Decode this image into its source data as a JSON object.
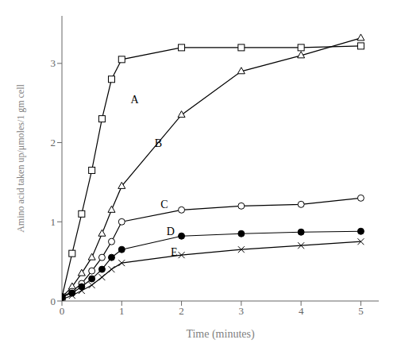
{
  "chart_data": {
    "type": "line",
    "xlabel": "Time  (minutes)",
    "ylabel": "Amino acid taken up/μmoles/1 gm cell",
    "xlim": [
      0,
      5.3
    ],
    "ylim": [
      0,
      3.6
    ],
    "xticks": [
      0,
      1,
      2,
      3,
      4,
      5
    ],
    "yticks": [
      0,
      1.0,
      2.0,
      3.0
    ],
    "grid": false,
    "series": [
      {
        "name": "A",
        "color": "#000000",
        "marker": "square",
        "x": [
          0,
          0.17,
          0.33,
          0.5,
          0.67,
          0.83,
          1.0,
          2.0,
          3.0,
          4.0,
          5.0
        ],
        "values": [
          0.05,
          0.6,
          1.1,
          1.65,
          2.3,
          2.8,
          3.05,
          3.2,
          3.2,
          3.2,
          3.22
        ]
      },
      {
        "name": "B",
        "color": "#000000",
        "marker": "triangle",
        "x": [
          0,
          0.17,
          0.33,
          0.5,
          0.67,
          0.83,
          1.0,
          2.0,
          3.0,
          4.0,
          5.0
        ],
        "values": [
          0.05,
          0.18,
          0.35,
          0.55,
          0.85,
          1.15,
          1.45,
          2.35,
          2.9,
          3.1,
          3.32
        ]
      },
      {
        "name": "C",
        "color": "#000000",
        "marker": "circle",
        "x": [
          0,
          0.17,
          0.33,
          0.5,
          0.67,
          0.83,
          1.0,
          2.0,
          3.0,
          4.0,
          5.0
        ],
        "values": [
          0.05,
          0.12,
          0.22,
          0.38,
          0.55,
          0.75,
          1.0,
          1.15,
          1.2,
          1.22,
          1.3
        ]
      },
      {
        "name": "D",
        "color": "#000000",
        "marker": "filled_circle",
        "x": [
          0,
          0.17,
          0.33,
          0.5,
          0.67,
          0.83,
          1.0,
          2.0,
          3.0,
          4.0,
          5.0
        ],
        "values": [
          0.05,
          0.1,
          0.18,
          0.28,
          0.4,
          0.55,
          0.65,
          0.82,
          0.85,
          0.87,
          0.88
        ]
      },
      {
        "name": "E",
        "color": "#000000",
        "marker": "cross",
        "x": [
          0,
          0.17,
          0.33,
          0.5,
          0.67,
          0.83,
          1.0,
          2.0,
          3.0,
          4.0,
          5.0
        ],
        "values": [
          0.02,
          0.07,
          0.13,
          0.2,
          0.3,
          0.4,
          0.48,
          0.58,
          0.65,
          0.7,
          0.75
        ]
      }
    ],
    "annotations": [
      {
        "text": "A",
        "x": 1.15,
        "y": 2.55
      },
      {
        "text": "B",
        "x": 1.55,
        "y": 2.0
      },
      {
        "text": "C",
        "x": 1.65,
        "y": 1.22
      },
      {
        "text": "D",
        "x": 1.75,
        "y": 0.88
      },
      {
        "text": "E",
        "x": 1.82,
        "y": 0.62
      }
    ]
  }
}
